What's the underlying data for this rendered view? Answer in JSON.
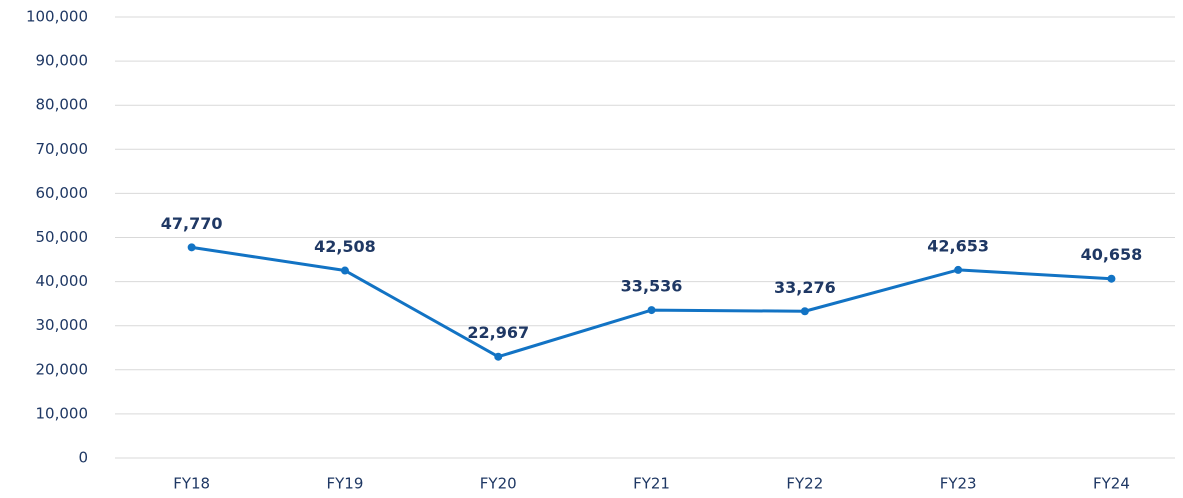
{
  "chart_data": {
    "type": "line",
    "categories": [
      "FY18",
      "FY19",
      "FY20",
      "FY21",
      "FY22",
      "FY23",
      "FY24"
    ],
    "series": [
      {
        "color": "#1273c4",
        "values": [
          47770,
          42508,
          22967,
          33536,
          33276,
          42653,
          40658
        ],
        "value_labels": [
          "47,770",
          "42,508",
          "22,967",
          "33,536",
          "33,276",
          "42,653",
          "40,658"
        ]
      }
    ],
    "ylim": [
      0,
      100000
    ],
    "yticks": [
      0,
      {
        "value": 10000,
        "label": "10,000"
      },
      {
        "value": 20000,
        "label": "20,000"
      },
      {
        "value": 30000,
        "label": "30,000"
      },
      {
        "value": 40000,
        "label": "40,000"
      },
      {
        "value": 50000,
        "label": "50,000"
      },
      {
        "value": 60000,
        "label": "60,000"
      },
      {
        "value": 70000,
        "label": "70,000"
      },
      {
        "value": 80000,
        "label": "80,000"
      },
      {
        "value": 90000,
        "label": "90,000"
      },
      {
        "value": 100000,
        "label": "100,000"
      }
    ],
    "grid": true
  }
}
